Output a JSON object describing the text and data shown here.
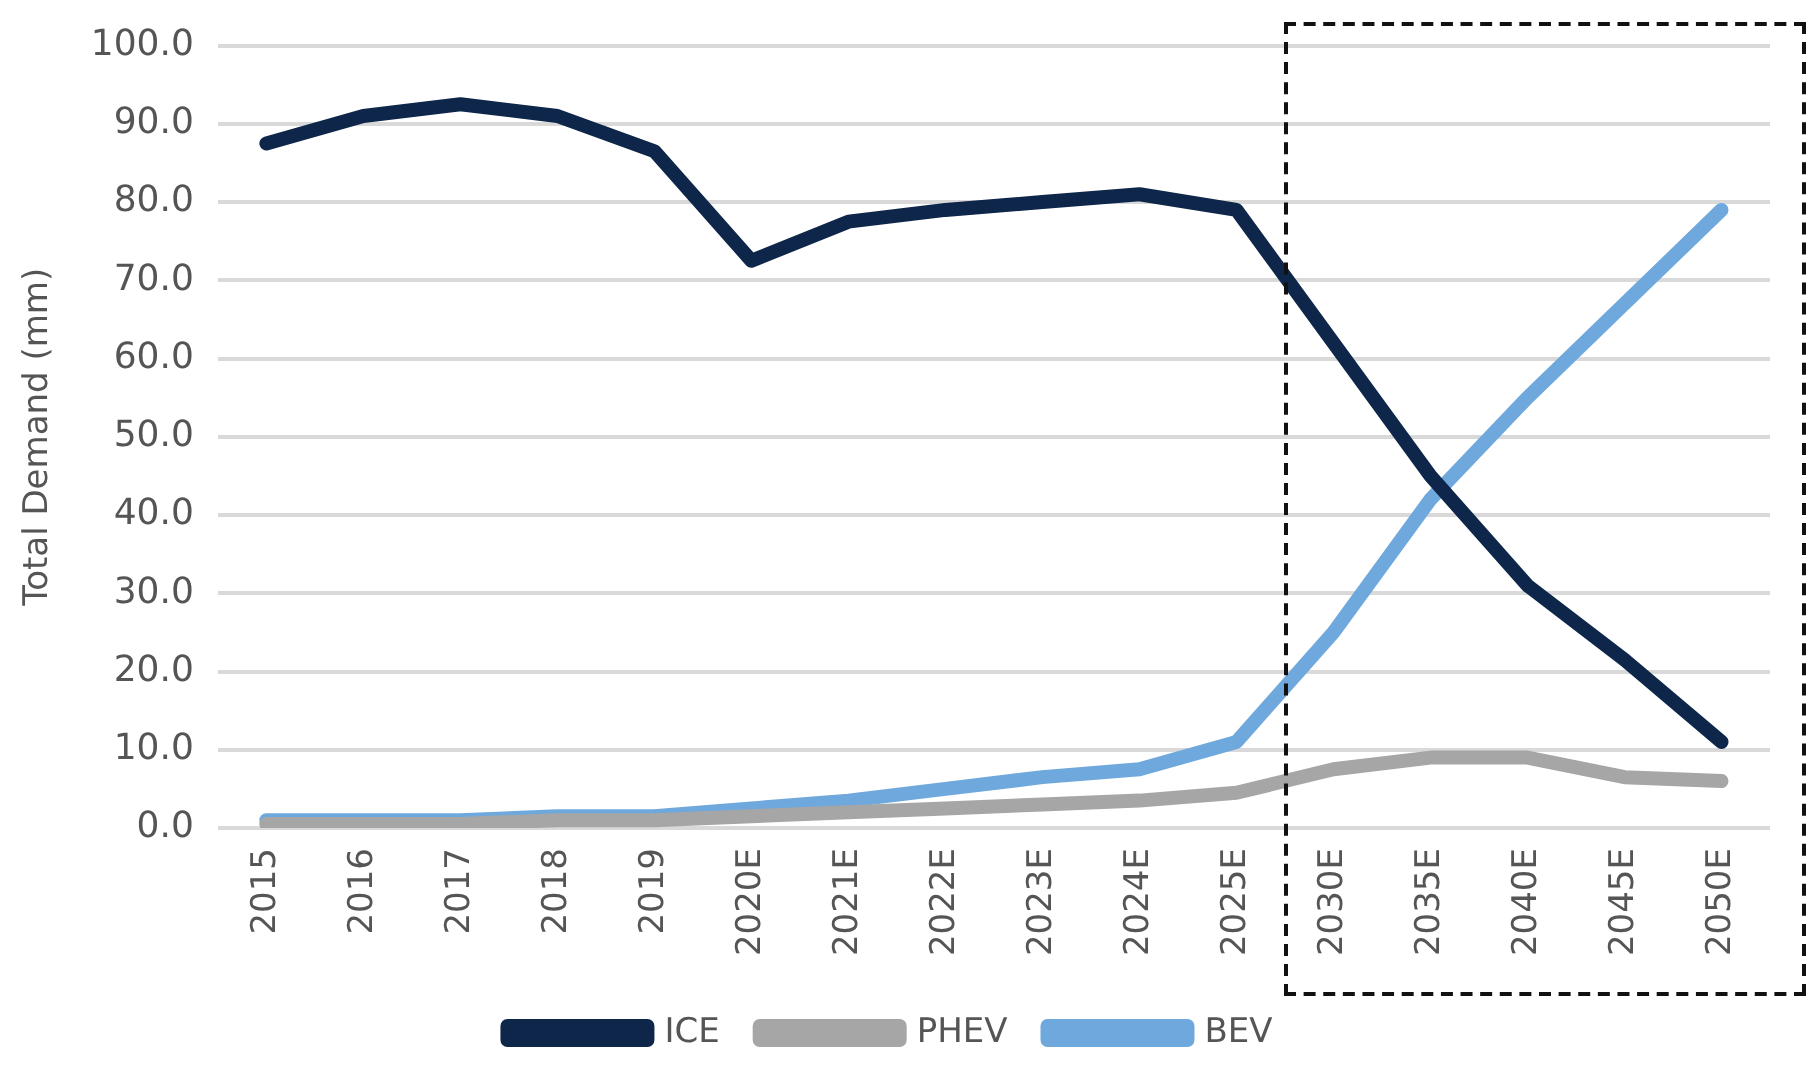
{
  "chart_data": {
    "type": "line",
    "ylabel": "Total Demand (mm)",
    "categories": [
      "2015",
      "2016",
      "2017",
      "2018",
      "2019",
      "2020E",
      "2021E",
      "2022E",
      "2023E",
      "2024E",
      "2025E",
      "2030E",
      "2035E",
      "2040E",
      "2045E",
      "2050E"
    ],
    "series": [
      {
        "name": "ICE",
        "color": "#0d2649",
        "values": [
          87.5,
          91,
          92.5,
          91,
          86.5,
          72.5,
          77.5,
          79,
          80,
          81,
          79,
          62,
          45,
          31,
          21.5,
          11
        ]
      },
      {
        "name": "PHEV",
        "color": "#a6a6a6",
        "values": [
          0.5,
          0.5,
          0.5,
          1,
          1,
          1.5,
          2,
          2.5,
          3,
          3.5,
          4.5,
          7.5,
          9,
          9,
          6.5,
          6
        ]
      },
      {
        "name": "BEV",
        "color": "#6fa8dc",
        "values": [
          1,
          1,
          1,
          1.5,
          1.5,
          2.5,
          3.5,
          5,
          6.5,
          7.5,
          11,
          25,
          42,
          55,
          67,
          79
        ]
      }
    ],
    "ylim": [
      0,
      100
    ],
    "yticks": [
      {
        "value": 0,
        "label": "0.0"
      },
      {
        "value": 10,
        "label": "10.0"
      },
      {
        "value": 20,
        "label": "20.0"
      },
      {
        "value": 30,
        "label": "30.0"
      },
      {
        "value": 40,
        "label": "40.0"
      },
      {
        "value": 50,
        "label": "50.0"
      },
      {
        "value": 60,
        "label": "60.0"
      },
      {
        "value": 70,
        "label": "70.0"
      },
      {
        "value": 80,
        "label": "80.0"
      },
      {
        "value": 90,
        "label": "90.0"
      },
      {
        "value": 100,
        "label": "100.0"
      }
    ],
    "grid": "y",
    "legend": "bottom",
    "marker": "none",
    "line_style": "solid"
  }
}
